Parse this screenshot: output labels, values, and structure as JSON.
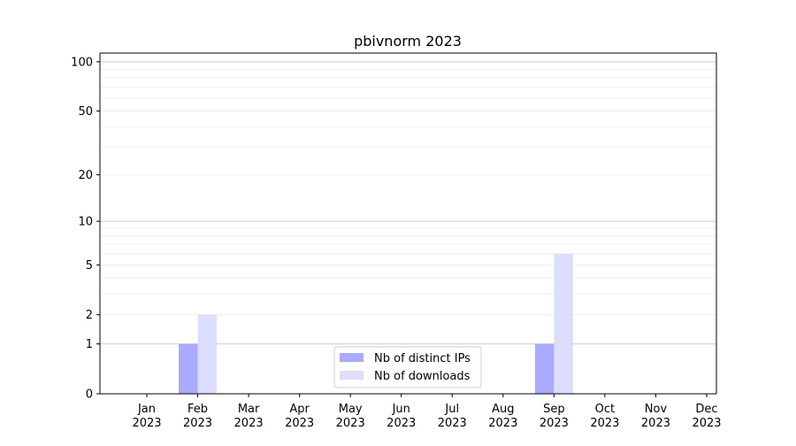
{
  "chart_data": {
    "type": "bar",
    "title": "pbivnorm 2023",
    "xlabel": "",
    "ylabel": "",
    "yscale": "log(1+y)",
    "ylim": [
      0,
      113
    ],
    "yticks": [
      0,
      1,
      2,
      5,
      10,
      20,
      50,
      100
    ],
    "categories": [
      "Jan\n2023",
      "Feb\n2023",
      "Mar\n2023",
      "Apr\n2023",
      "May\n2023",
      "Jun\n2023",
      "Jul\n2023",
      "Aug\n2023",
      "Sep\n2023",
      "Oct\n2023",
      "Nov\n2023",
      "Dec\n2023"
    ],
    "series": [
      {
        "name": "Nb of distinct IPs",
        "color": "#aaaaff",
        "values": [
          0,
          1,
          0,
          0,
          0,
          0,
          0,
          0,
          1,
          0,
          0,
          0
        ]
      },
      {
        "name": "Nb of downloads",
        "color": "#ddddff",
        "values": [
          0,
          2,
          0,
          0,
          0,
          0,
          0,
          0,
          6,
          0,
          0,
          0
        ]
      }
    ],
    "grid": true,
    "legend": "lower-center"
  }
}
